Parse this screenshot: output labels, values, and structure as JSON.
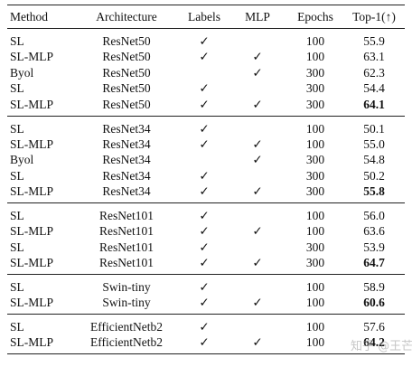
{
  "table": {
    "headers": [
      "Method",
      "Architecture",
      "Labels",
      "MLP",
      "Epochs",
      "Top-1(↑)"
    ],
    "groups": [
      {
        "rows": [
          {
            "method": "SL",
            "arch": "ResNet50",
            "labels": "✓",
            "mlp": "",
            "epochs": "100",
            "top1": "55.9",
            "bold": false
          },
          {
            "method": "SL-MLP",
            "arch": "ResNet50",
            "labels": "✓",
            "mlp": "✓",
            "epochs": "100",
            "top1": "63.1",
            "bold": false
          },
          {
            "method": "Byol",
            "arch": "ResNet50",
            "labels": "",
            "mlp": "✓",
            "epochs": "300",
            "top1": "62.3",
            "bold": false
          },
          {
            "method": "SL",
            "arch": "ResNet50",
            "labels": "✓",
            "mlp": "",
            "epochs": "300",
            "top1": "54.4",
            "bold": false
          },
          {
            "method": "SL-MLP",
            "arch": "ResNet50",
            "labels": "✓",
            "mlp": "✓",
            "epochs": "300",
            "top1": "64.1",
            "bold": true
          }
        ]
      },
      {
        "rows": [
          {
            "method": "SL",
            "arch": "ResNet34",
            "labels": "✓",
            "mlp": "",
            "epochs": "100",
            "top1": "50.1",
            "bold": false
          },
          {
            "method": "SL-MLP",
            "arch": "ResNet34",
            "labels": "✓",
            "mlp": "✓",
            "epochs": "100",
            "top1": "55.0",
            "bold": false
          },
          {
            "method": "Byol",
            "arch": "ResNet34",
            "labels": "",
            "mlp": "✓",
            "epochs": "300",
            "top1": "54.8",
            "bold": false
          },
          {
            "method": "SL",
            "arch": "ResNet34",
            "labels": "✓",
            "mlp": "",
            "epochs": "300",
            "top1": "50.2",
            "bold": false
          },
          {
            "method": "SL-MLP",
            "arch": "ResNet34",
            "labels": "✓",
            "mlp": "✓",
            "epochs": "300",
            "top1": "55.8",
            "bold": true
          }
        ]
      },
      {
        "rows": [
          {
            "method": "SL",
            "arch": "ResNet101",
            "labels": "✓",
            "mlp": "",
            "epochs": "100",
            "top1": "56.0",
            "bold": false
          },
          {
            "method": "SL-MLP",
            "arch": "ResNet101",
            "labels": "✓",
            "mlp": "✓",
            "epochs": "100",
            "top1": "63.6",
            "bold": false
          },
          {
            "method": "SL",
            "arch": "ResNet101",
            "labels": "✓",
            "mlp": "",
            "epochs": "300",
            "top1": "53.9",
            "bold": false
          },
          {
            "method": "SL-MLP",
            "arch": "ResNet101",
            "labels": "✓",
            "mlp": "✓",
            "epochs": "300",
            "top1": "64.7",
            "bold": true
          }
        ]
      },
      {
        "rows": [
          {
            "method": "SL",
            "arch": "Swin-tiny",
            "labels": "✓",
            "mlp": "",
            "epochs": "100",
            "top1": "58.9",
            "bold": false
          },
          {
            "method": "SL-MLP",
            "arch": "Swin-tiny",
            "labels": "✓",
            "mlp": "✓",
            "epochs": "100",
            "top1": "60.6",
            "bold": true
          }
        ]
      },
      {
        "rows": [
          {
            "method": "SL",
            "arch": "EfficientNetb2",
            "labels": "✓",
            "mlp": "",
            "epochs": "100",
            "top1": "57.6",
            "bold": false
          },
          {
            "method": "SL-MLP",
            "arch": "EfficientNetb2",
            "labels": "✓",
            "mlp": "✓",
            "epochs": "100",
            "top1": "64.2",
            "bold": true
          }
        ]
      }
    ]
  },
  "watermark": "知乎 @王芒片"
}
